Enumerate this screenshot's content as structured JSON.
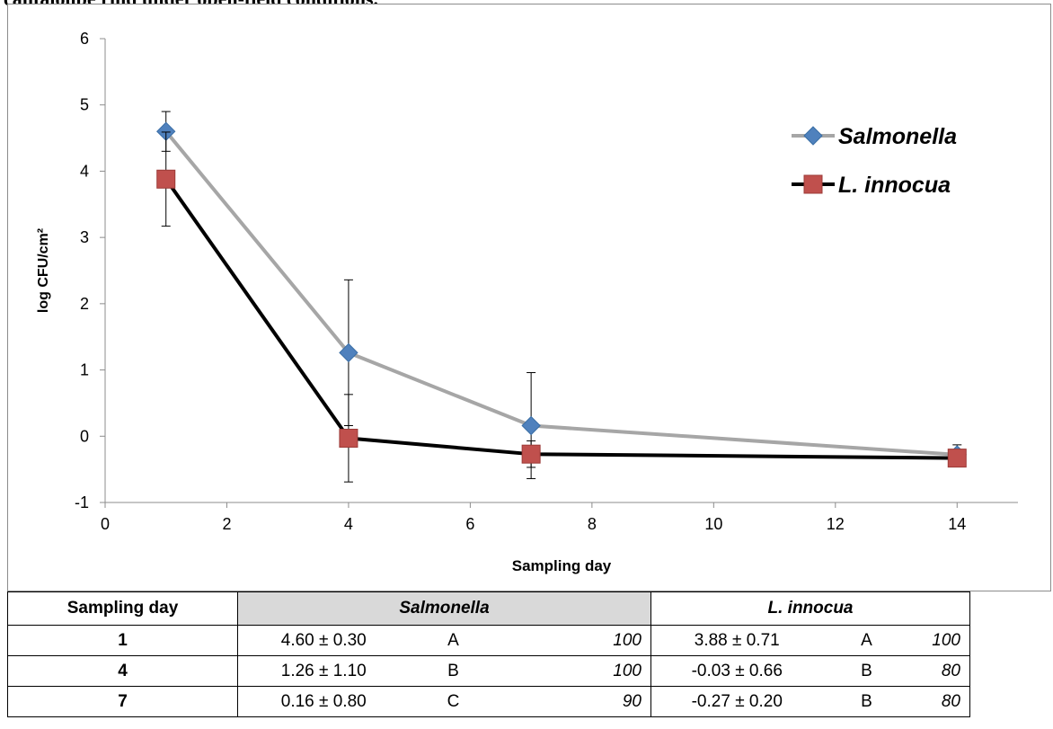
{
  "caption": "cantaloupe rind under open-field conditions.",
  "chart_data": {
    "type": "line",
    "x": [
      1,
      4,
      7,
      14
    ],
    "xlabel": "Sampling day",
    "ylabel": "log CFU/cm²",
    "xlim": [
      0,
      15
    ],
    "ylim": [
      -1,
      6
    ],
    "xticks": [
      0,
      2,
      4,
      6,
      8,
      10,
      12,
      14
    ],
    "yticks": [
      -1,
      0,
      1,
      2,
      3,
      4,
      5,
      6
    ],
    "grid": false,
    "legend_position": "top-right",
    "series": [
      {
        "name": "Salmonella",
        "values": [
          4.6,
          1.26,
          0.16,
          -0.28
        ],
        "error": [
          0.3,
          1.1,
          0.8,
          0.15
        ],
        "marker": "diamond",
        "line_color": "#a6a6a6",
        "marker_color": "#4f81bd"
      },
      {
        "name": "L. innocua",
        "values": [
          3.88,
          -0.03,
          -0.27,
          -0.33
        ],
        "error": [
          0.71,
          0.66,
          0.2,
          0.05
        ],
        "marker": "square",
        "line_color": "#000000",
        "marker_color": "#c0504d"
      }
    ]
  },
  "table": {
    "header": {
      "day": "Sampling day",
      "salmonella": "Salmonella",
      "innocua": "L. innocua"
    },
    "rows": [
      {
        "day": "1",
        "s_val": "4.60 ± 0.30",
        "s_grp": "A",
        "s_pct": "100",
        "l_val": "3.88 ± 0.71",
        "l_grp": "A",
        "l_pct": "100"
      },
      {
        "day": "4",
        "s_val": "1.26 ± 1.10",
        "s_grp": "B",
        "s_pct": "100",
        "l_val": "-0.03 ± 0.66",
        "l_grp": "B",
        "l_pct": "80"
      },
      {
        "day": "7",
        "s_val": "0.16 ± 0.80",
        "s_grp": "C",
        "s_pct": "90",
        "l_val": "-0.27 ± 0.20",
        "l_grp": "B",
        "l_pct": "80"
      }
    ]
  }
}
